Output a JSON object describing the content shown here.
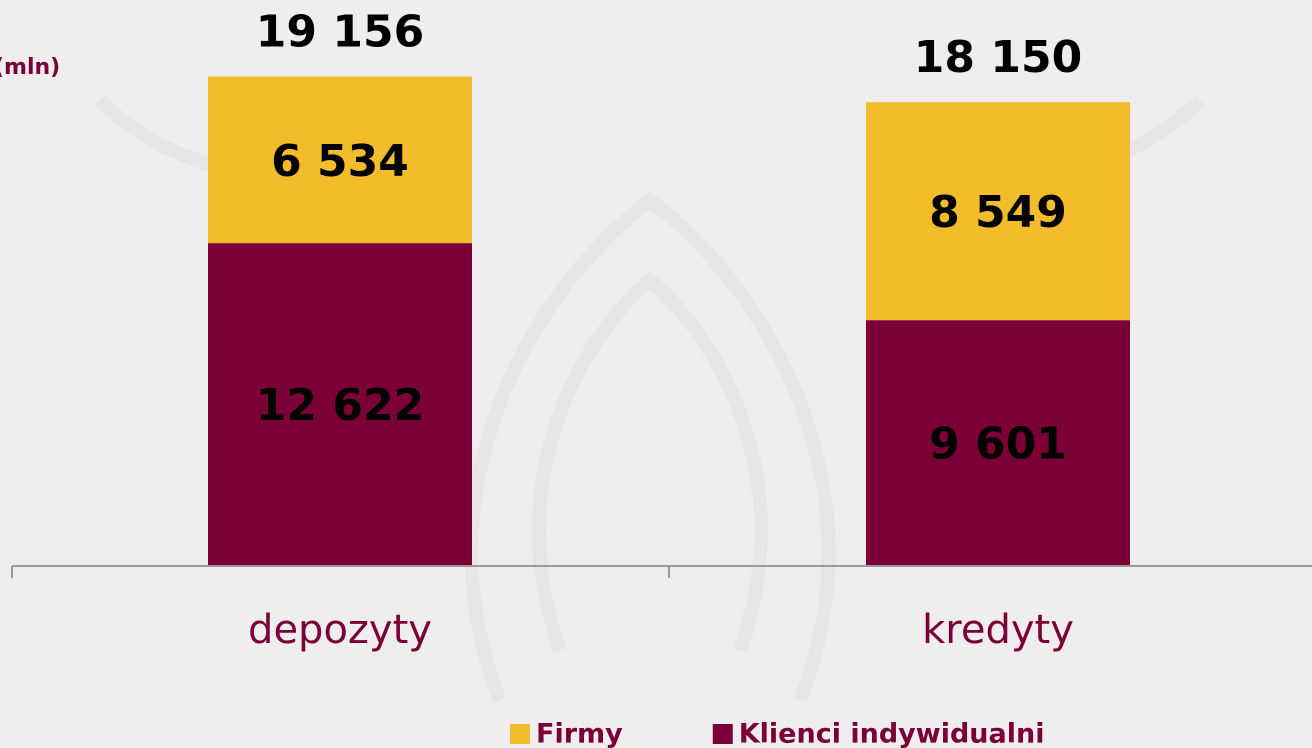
{
  "chart_data": {
    "type": "stacked_bar",
    "y_label": "(mln)",
    "categories": [
      "depozyty",
      "kredyty"
    ],
    "series": [
      {
        "name": "Klienci indywidualni",
        "color": "#7b0037",
        "values": [
          12622,
          9601
        ],
        "value_labels": [
          "12 622",
          "9 601"
        ]
      },
      {
        "name": "Firmy",
        "color": "#f2bc2a",
        "values": [
          6534,
          8549
        ],
        "value_labels": [
          "6 534",
          "8 549"
        ]
      }
    ],
    "totals": [
      19156,
      18150
    ],
    "total_labels": [
      "19 156",
      "18 150"
    ],
    "ylim": [
      0,
      20000
    ]
  }
}
